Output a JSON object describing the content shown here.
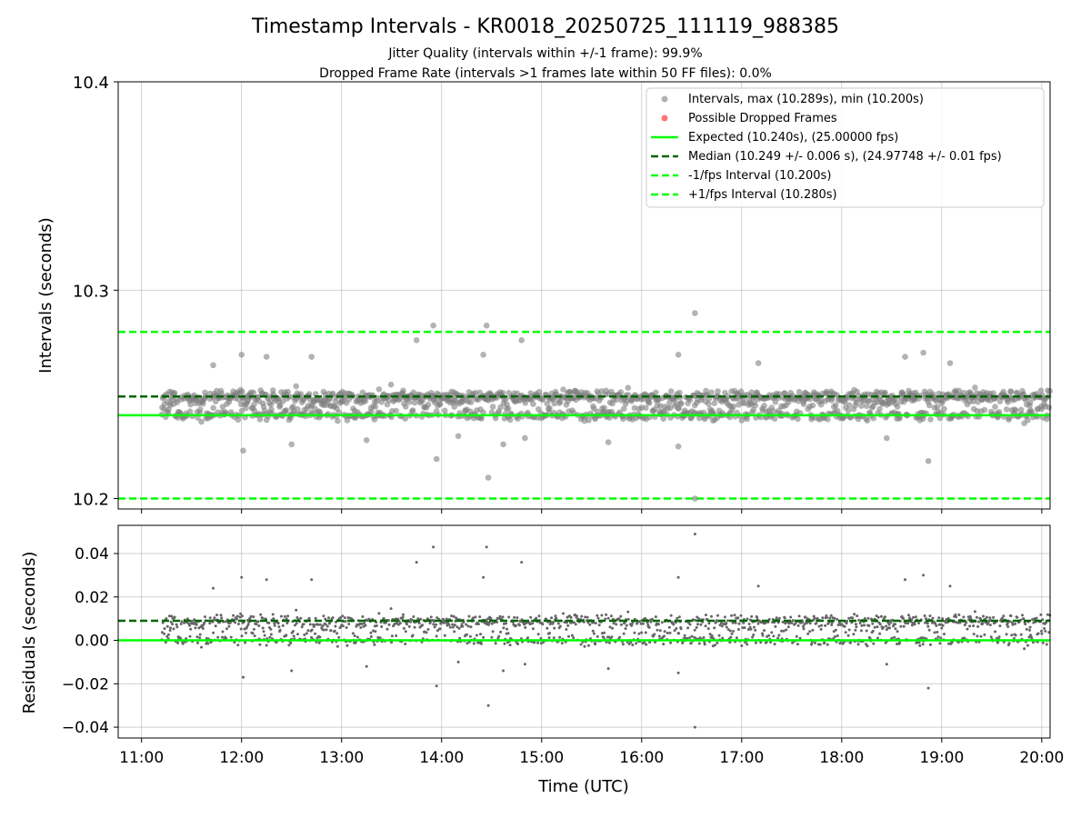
{
  "title": "Timestamp Intervals - KR0018_20250725_111119_988385",
  "subtitle_1": "Jitter Quality (intervals within +/-1 frame): 99.9%",
  "subtitle_2": "Dropped Frame Rate (intervals >1 frames late within 50 FF files): 0.0%",
  "colors": {
    "points": "#808080",
    "dropped": "#ff6666",
    "expected": "#00ff00",
    "median": "#006400",
    "bounds": "#00ff00"
  },
  "chart_data": [
    {
      "type": "scatter",
      "panel": "intervals",
      "ylabel": "Intervals (seconds)",
      "xlabel": "",
      "ylim": [
        10.195,
        10.4
      ],
      "yticks": [
        "10.2",
        "10.3",
        "10.4"
      ],
      "ytick_values": [
        10.2,
        10.3,
        10.4
      ],
      "xlim": [
        "10:46",
        "20:05"
      ],
      "grid": true,
      "legend_position": "top-right",
      "legend": [
        "Intervals, max (10.289s), min (10.200s)",
        "Possible Dropped Frames",
        "Expected (10.240s), (25.00000 fps)",
        "Median (10.249 +/- 0.006 s), (24.97748 +/- 0.01 fps)",
        "-1/fps Interval (10.200s)",
        "+1/fps Interval (10.280s)"
      ],
      "reference_lines": {
        "expected": 10.24,
        "median": 10.249,
        "minus_one_fps": 10.2,
        "plus_one_fps": 10.28
      },
      "series_summary": {
        "time_start": "11:12",
        "time_end": "20:05",
        "max": 10.289,
        "min": 10.2,
        "dense_band": [
          10.237,
          10.255
        ],
        "outliers": [
          [
            "11:43",
            10.264
          ],
          [
            "12:00",
            10.269
          ],
          [
            "12:01",
            10.223
          ],
          [
            "12:15",
            10.268
          ],
          [
            "12:30",
            10.226
          ],
          [
            "12:42",
            10.268
          ],
          [
            "13:15",
            10.228
          ],
          [
            "13:45",
            10.276
          ],
          [
            "13:55",
            10.283
          ],
          [
            "13:57",
            10.219
          ],
          [
            "14:10",
            10.23
          ],
          [
            "14:25",
            10.269
          ],
          [
            "14:27",
            10.283
          ],
          [
            "14:28",
            10.21
          ],
          [
            "14:37",
            10.226
          ],
          [
            "14:48",
            10.276
          ],
          [
            "14:50",
            10.229
          ],
          [
            "15:40",
            10.227
          ],
          [
            "16:22",
            10.269
          ],
          [
            "16:22",
            10.225
          ],
          [
            "16:32",
            10.289
          ],
          [
            "16:32",
            10.2
          ],
          [
            "17:10",
            10.265
          ],
          [
            "18:27",
            10.229
          ],
          [
            "18:38",
            10.268
          ],
          [
            "18:49",
            10.27
          ],
          [
            "18:52",
            10.218
          ],
          [
            "19:05",
            10.265
          ]
        ]
      }
    },
    {
      "type": "scatter",
      "panel": "residuals",
      "ylabel": "Residuals (seconds)",
      "xlabel": "Time (UTC)",
      "ylim": [
        -0.045,
        0.053
      ],
      "yticks": [
        "0.04",
        "0.02",
        "0.00",
        "−0.02",
        "−0.04"
      ],
      "ytick_values": [
        0.04,
        0.02,
        0.0,
        -0.02,
        -0.04
      ],
      "xticks": [
        "11:00",
        "12:00",
        "13:00",
        "14:00",
        "15:00",
        "16:00",
        "17:00",
        "18:00",
        "19:00",
        "20:00"
      ],
      "grid": true,
      "reference_lines": {
        "zero": 0.0,
        "median_offset": 0.009
      },
      "series_summary": {
        "max": 0.049,
        "min": -0.04,
        "dense_band": [
          -0.003,
          0.015
        ]
      }
    }
  ]
}
